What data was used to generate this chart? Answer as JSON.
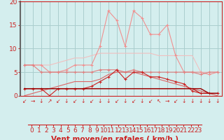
{
  "title": "",
  "xlabel": "Vent moyen/en rafales ( km/h )",
  "ylabel": "",
  "xlim": [
    -0.5,
    23.5
  ],
  "ylim": [
    0,
    20
  ],
  "background_color": "#d4eeee",
  "grid_color": "#aacece",
  "x": [
    0,
    1,
    2,
    3,
    4,
    5,
    6,
    7,
    8,
    9,
    10,
    11,
    12,
    13,
    14,
    15,
    16,
    17,
    18,
    19,
    20,
    21,
    22,
    23
  ],
  "line_max_rafales": [
    6.5,
    6.5,
    6.5,
    5.0,
    5.0,
    5.5,
    6.5,
    6.5,
    6.5,
    10.5,
    18.0,
    16.0,
    10.5,
    18.0,
    16.5,
    13.0,
    13.0,
    15.0,
    8.5,
    5.0,
    5.0,
    5.0,
    4.5,
    5.0
  ],
  "line_max_rafales_color": "#f09090",
  "line_envelope": [
    6.5,
    6.5,
    6.5,
    6.5,
    7.0,
    7.5,
    8.0,
    8.0,
    8.5,
    9.0,
    9.0,
    9.0,
    9.0,
    9.0,
    9.0,
    9.0,
    8.5,
    8.5,
    8.5,
    8.5,
    8.5,
    5.0,
    5.0,
    5.0
  ],
  "line_envelope_color": "#f0c0c0",
  "line_moy_rafales": [
    6.5,
    6.5,
    5.0,
    5.0,
    5.0,
    5.0,
    5.0,
    5.0,
    5.0,
    5.5,
    5.5,
    5.5,
    5.0,
    5.5,
    5.0,
    5.0,
    5.0,
    5.0,
    5.0,
    5.0,
    5.0,
    4.5,
    5.0,
    5.0
  ],
  "line_moy_rafales_color": "#e08080",
  "line_trend": [
    0.0,
    0.5,
    1.0,
    1.5,
    2.0,
    2.5,
    3.0,
    3.0,
    3.0,
    3.5,
    4.5,
    5.0,
    5.0,
    5.0,
    4.5,
    4.0,
    3.5,
    3.0,
    2.5,
    2.0,
    1.5,
    1.0,
    0.5,
    0.0
  ],
  "line_trend_color": "#dd6666",
  "line_moy_vent": [
    1.5,
    1.5,
    1.5,
    0.0,
    1.5,
    1.5,
    1.5,
    1.5,
    2.0,
    3.0,
    4.0,
    5.5,
    3.5,
    5.0,
    5.0,
    4.0,
    4.0,
    3.5,
    3.0,
    2.5,
    1.0,
    0.5,
    0.5,
    0.5
  ],
  "line_moy_vent_color": "#cc2222",
  "line_min1": [
    1.5,
    1.5,
    1.5,
    1.5,
    1.5,
    1.5,
    1.5,
    1.5,
    1.5,
    1.5,
    1.5,
    1.5,
    1.5,
    1.5,
    1.5,
    1.5,
    1.5,
    1.5,
    1.5,
    1.5,
    1.5,
    0.5,
    0.5,
    0.5
  ],
  "line_min1_color": "#bb1111",
  "line_min2": [
    1.5,
    1.5,
    1.5,
    1.5,
    1.5,
    1.5,
    1.5,
    1.5,
    1.5,
    1.5,
    1.5,
    1.5,
    1.5,
    1.5,
    1.5,
    1.5,
    1.5,
    1.5,
    1.5,
    1.5,
    1.5,
    1.5,
    0.5,
    0.5
  ],
  "line_min2_color": "#990000",
  "xticks": [
    0,
    1,
    2,
    3,
    4,
    5,
    6,
    7,
    8,
    9,
    10,
    11,
    12,
    13,
    14,
    15,
    16,
    17,
    18,
    19,
    20,
    21,
    22,
    23
  ],
  "yticks": [
    0,
    5,
    10,
    15,
    20
  ],
  "tick_color": "#cc2222",
  "xlabel_color": "#cc2222",
  "xlabel_fontsize": 7.5,
  "tick_fontsize": 6.5,
  "directions": [
    "↙",
    "→",
    "↓",
    "↗",
    "↙",
    "↓",
    "↙",
    "↓",
    "↙",
    "↓",
    "↓",
    "↙",
    "↓",
    "↙",
    "↓",
    "↙",
    "↖",
    "→",
    "↙",
    "↓",
    "↓",
    "↓",
    "↓",
    "↓"
  ]
}
